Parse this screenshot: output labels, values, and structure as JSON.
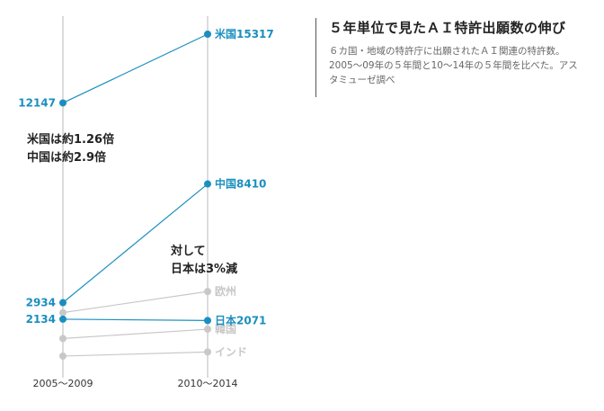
{
  "header": {
    "title": "５年単位で見たＡＩ特許出願数の伸び",
    "subtitle": "６カ国・地域の特許庁に出願されたＡＩ関連の特許数。2005～09年の５年間と10～14年の５年間を比べた。アスタミューゼ調べ"
  },
  "annotations": {
    "upper_line1": "米国は約1.26倍",
    "upper_line2": "中国は約2.9倍",
    "lower_line1": "対して",
    "lower_line2": "日本は3%減"
  },
  "colors": {
    "highlight": "#1a8fbf",
    "muted": "#c8c8c8",
    "text": "#222222"
  },
  "chart_data": {
    "type": "line",
    "title": "５年単位で見たＡＩ特許出願数の伸び",
    "categories": [
      "2005～2009",
      "2010～2014"
    ],
    "series": [
      {
        "name": "米国",
        "values": [
          12147,
          15317
        ],
        "highlight": true,
        "left_label": "12147",
        "right_label": "米国15317"
      },
      {
        "name": "中国",
        "values": [
          2934,
          8410
        ],
        "highlight": true,
        "left_label": "2934",
        "right_label": "中国8410"
      },
      {
        "name": "日本",
        "values": [
          2134,
          2071
        ],
        "highlight": true,
        "left_label": "2134",
        "right_label": "日本2071"
      },
      {
        "name": "欧州",
        "values": [
          2450,
          3450
        ],
        "highlight": false,
        "left_label": "",
        "right_label": "欧州"
      },
      {
        "name": "韓国",
        "values": [
          1200,
          1650
        ],
        "highlight": false,
        "left_label": "",
        "right_label": "韓国"
      },
      {
        "name": "インド",
        "values": [
          350,
          550
        ],
        "highlight": false,
        "left_label": "",
        "right_label": "インド"
      }
    ]
  }
}
